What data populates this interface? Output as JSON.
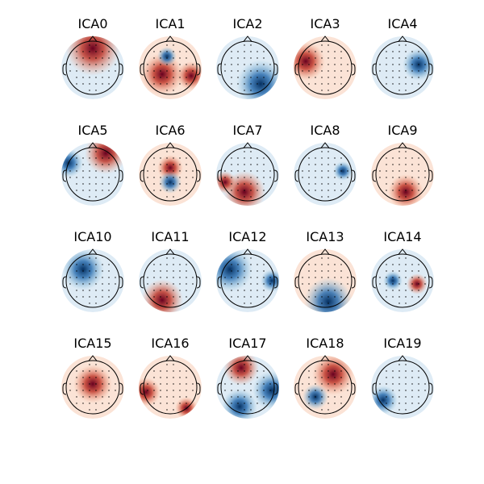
{
  "panels": [
    {
      "title": "ICA0"
    },
    {
      "title": "ICA1"
    },
    {
      "title": "ICA2"
    },
    {
      "title": "ICA3"
    },
    {
      "title": "ICA4"
    },
    {
      "title": "ICA5"
    },
    {
      "title": "ICA6"
    },
    {
      "title": "ICA7"
    },
    {
      "title": "ICA8"
    },
    {
      "title": "ICA9"
    },
    {
      "title": "ICA10"
    },
    {
      "title": "ICA11"
    },
    {
      "title": "ICA12"
    },
    {
      "title": "ICA13"
    },
    {
      "title": "ICA14"
    },
    {
      "title": "ICA15"
    },
    {
      "title": "ICA16"
    },
    {
      "title": "ICA17"
    },
    {
      "title": "ICA18"
    },
    {
      "title": "ICA19"
    }
  ]
}
